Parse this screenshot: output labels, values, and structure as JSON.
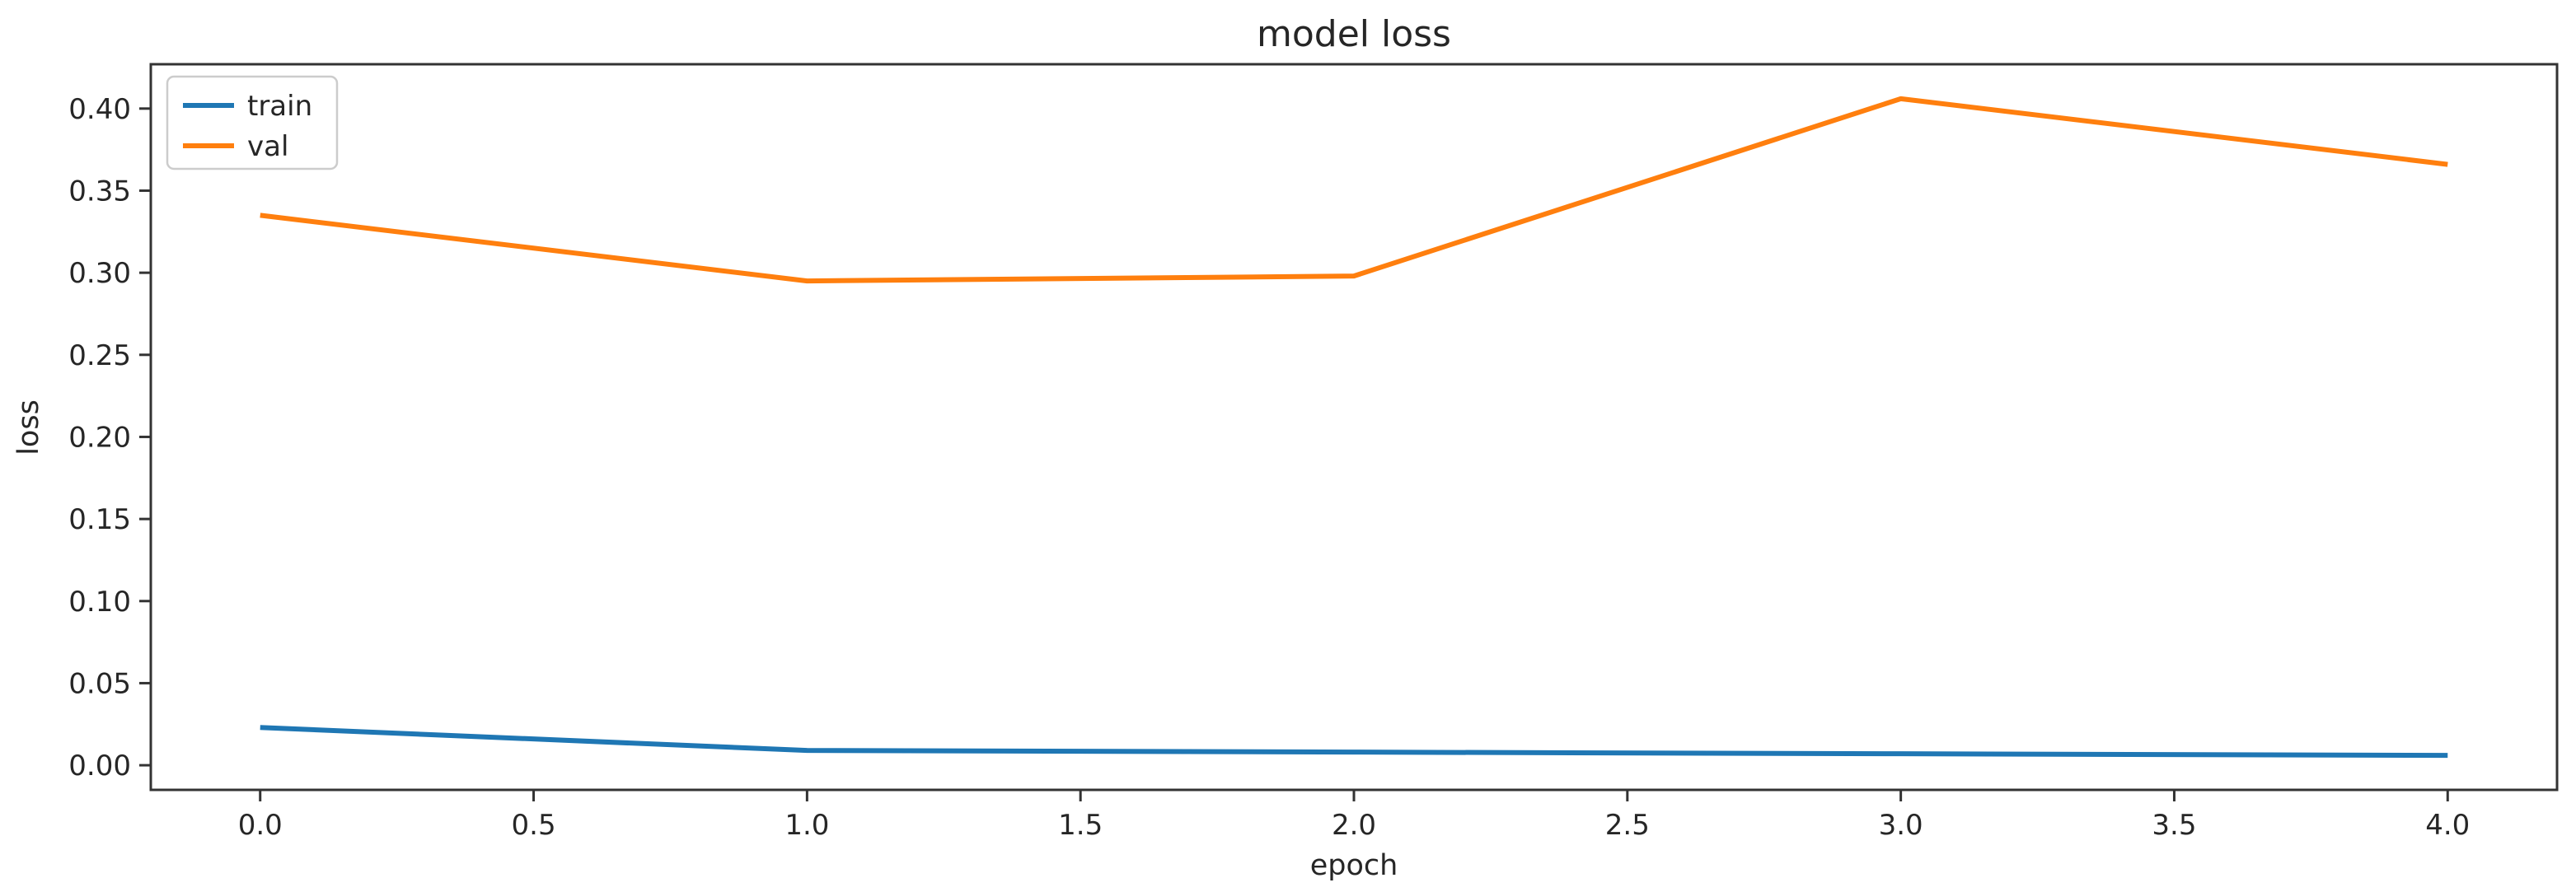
{
  "figure": {
    "background": "#ffffff"
  },
  "chart_data": {
    "type": "line",
    "title": "model loss",
    "xlabel": "epoch",
    "ylabel": "loss",
    "x": [
      0,
      1,
      2,
      3,
      4
    ],
    "series": [
      {
        "name": "train",
        "color": "#1f77b4",
        "values": [
          0.023,
          0.009,
          0.008,
          0.007,
          0.006
        ]
      },
      {
        "name": "val",
        "color": "#ff7f0e",
        "values": [
          0.335,
          0.295,
          0.298,
          0.406,
          0.366
        ]
      }
    ],
    "xlim": [
      -0.2,
      4.2
    ],
    "ylim": [
      -0.015,
      0.427
    ],
    "xticks": {
      "values": [
        0,
        0.5,
        1,
        1.5,
        2,
        2.5,
        3,
        3.5,
        4
      ],
      "labels": [
        "0.0",
        "0.5",
        "1.0",
        "1.5",
        "2.0",
        "2.5",
        "3.0",
        "3.5",
        "4.0"
      ]
    },
    "yticks": {
      "values": [
        0,
        0.05,
        0.1,
        0.15,
        0.2,
        0.25,
        0.3,
        0.35,
        0.4
      ],
      "labels": [
        "0.00",
        "0.05",
        "0.10",
        "0.15",
        "0.20",
        "0.25",
        "0.30",
        "0.35",
        "0.40"
      ]
    },
    "legend": {
      "position": "upper-left",
      "entries": [
        "train",
        "val"
      ],
      "border_color": "#cccccc",
      "background": "#ffffff"
    },
    "grid": false,
    "axis_color": "#333333",
    "text_color": "#262626"
  }
}
